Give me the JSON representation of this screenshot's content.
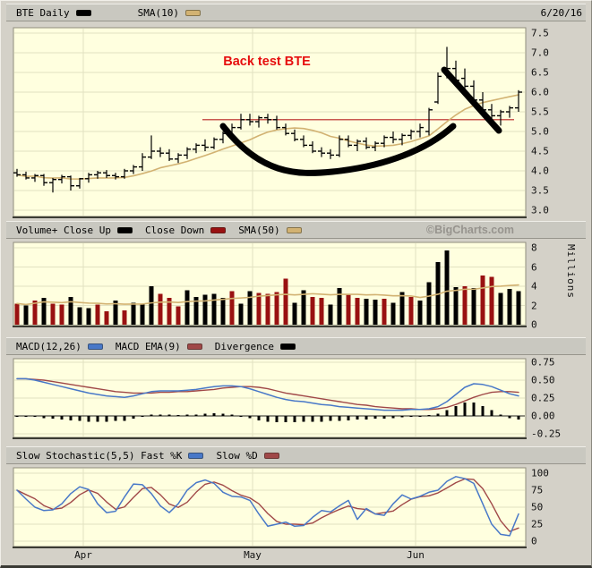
{
  "page": {
    "date": "6/20/16",
    "watermark": "©BigCharts.com"
  },
  "x_axis": {
    "months": [
      "Apr",
      "May",
      "Jun"
    ]
  },
  "panels": {
    "price": {
      "legend": [
        {
          "label": "BTE Daily",
          "color": "#000000"
        },
        {
          "label": "SMA(10)",
          "color": "#d2b272"
        }
      ],
      "y_ticks": [
        "7.5",
        "7.0",
        "6.5",
        "6.0",
        "5.5",
        "5.0",
        "4.5",
        "4.0",
        "3.5",
        "3.0"
      ]
    },
    "volume": {
      "legend": [
        {
          "label": "Volume+ Close Up",
          "color": "#000000"
        },
        {
          "label": "Close Down",
          "color": "#991111"
        },
        {
          "label": "SMA(50)",
          "color": "#d2b272"
        }
      ],
      "y_ticks": [
        "8",
        "6",
        "4",
        "2",
        "0"
      ],
      "y_axis_label": "Millions"
    },
    "macd": {
      "legend": [
        {
          "label": "MACD(12,26)",
          "color": "#4878c8"
        },
        {
          "label": "MACD EMA(9)",
          "color": "#a04848"
        },
        {
          "label": "Divergence",
          "color": "#000000"
        }
      ],
      "y_ticks": [
        "0.75",
        "0.50",
        "0.25",
        "0.00",
        "-0.25"
      ]
    },
    "stochastic": {
      "legend": [
        {
          "label": "Slow Stochastic(5,5) Fast %K",
          "color": "#4878c8"
        },
        {
          "label": "Slow %D",
          "color": "#a04848"
        }
      ],
      "y_ticks": [
        "100",
        "75",
        "50",
        "25",
        "0"
      ]
    }
  },
  "theme": {
    "plot_bg": "#ffffdf",
    "grid": "#e2e2c2",
    "plot_border": "#8f8d7e",
    "bar_black": "#000000",
    "bar_red": "#991111",
    "sma_tan": "#d2b272",
    "macd_blue": "#4878c8",
    "indicator_red": "#a04848",
    "hline_red": "#b82222",
    "annotation_red": "#e60e0e"
  },
  "chart_data": {
    "price": {
      "type": "ohlc",
      "symbol": "BTE",
      "interval": "Daily",
      "ylim": [
        3.0,
        7.5
      ],
      "sma_period": 10,
      "ohlc": [
        [
          3.95,
          4.05,
          3.85,
          3.9
        ],
        [
          3.9,
          3.98,
          3.78,
          3.82
        ],
        [
          3.82,
          3.92,
          3.72,
          3.88
        ],
        [
          3.88,
          3.92,
          3.62,
          3.7
        ],
        [
          3.7,
          3.82,
          3.45,
          3.78
        ],
        [
          3.78,
          3.9,
          3.68,
          3.85
        ],
        [
          3.85,
          3.88,
          3.5,
          3.62
        ],
        [
          3.62,
          3.82,
          3.55,
          3.8
        ],
        [
          3.8,
          3.95,
          3.7,
          3.9
        ],
        [
          3.9,
          4.0,
          3.8,
          3.95
        ],
        [
          3.95,
          4.02,
          3.82,
          3.88
        ],
        [
          3.88,
          3.95,
          3.78,
          3.85
        ],
        [
          3.85,
          4.05,
          3.8,
          4.0
        ],
        [
          4.0,
          4.15,
          3.92,
          4.1
        ],
        [
          4.1,
          4.45,
          4.0,
          4.35
        ],
        [
          4.35,
          4.9,
          4.3,
          4.5
        ],
        [
          4.5,
          4.6,
          4.35,
          4.45
        ],
        [
          4.45,
          4.55,
          4.25,
          4.3
        ],
        [
          4.3,
          4.45,
          4.2,
          4.4
        ],
        [
          4.4,
          4.6,
          4.3,
          4.55
        ],
        [
          4.55,
          4.7,
          4.45,
          4.65
        ],
        [
          4.65,
          4.8,
          4.5,
          4.6
        ],
        [
          4.6,
          4.85,
          4.55,
          4.8
        ],
        [
          4.8,
          5.0,
          4.7,
          4.95
        ],
        [
          4.95,
          5.2,
          4.85,
          5.1
        ],
        [
          5.1,
          5.45,
          5.05,
          5.3
        ],
        [
          5.3,
          5.45,
          5.15,
          5.25
        ],
        [
          5.25,
          5.4,
          5.1,
          5.35
        ],
        [
          5.35,
          5.45,
          5.2,
          5.3
        ],
        [
          5.3,
          5.4,
          5.05,
          5.1
        ],
        [
          5.1,
          5.2,
          4.9,
          4.95
        ],
        [
          4.95,
          5.05,
          4.75,
          4.8
        ],
        [
          4.8,
          4.9,
          4.6,
          4.65
        ],
        [
          4.65,
          4.75,
          4.45,
          4.5
        ],
        [
          4.5,
          4.6,
          4.35,
          4.45
        ],
        [
          4.45,
          4.55,
          4.3,
          4.4
        ],
        [
          4.4,
          4.9,
          4.35,
          4.8
        ],
        [
          4.8,
          4.9,
          4.6,
          4.65
        ],
        [
          4.65,
          4.8,
          4.5,
          4.75
        ],
        [
          4.75,
          4.85,
          4.55,
          4.6
        ],
        [
          4.6,
          4.75,
          4.5,
          4.7
        ],
        [
          4.7,
          4.9,
          4.6,
          4.85
        ],
        [
          4.85,
          5.0,
          4.7,
          4.8
        ],
        [
          4.8,
          4.95,
          4.65,
          4.9
        ],
        [
          4.9,
          5.05,
          4.8,
          5.0
        ],
        [
          5.0,
          5.2,
          4.85,
          5.1
        ],
        [
          5.0,
          5.6,
          4.9,
          5.55
        ],
        [
          5.75,
          6.5,
          5.7,
          6.4
        ],
        [
          6.5,
          7.15,
          6.35,
          6.6
        ],
        [
          6.6,
          6.8,
          6.15,
          6.3
        ],
        [
          6.35,
          6.6,
          6.0,
          6.15
        ],
        [
          6.15,
          6.3,
          5.7,
          5.8
        ],
        [
          5.8,
          6.0,
          5.45,
          5.55
        ],
        [
          5.55,
          5.7,
          5.3,
          5.4
        ],
        [
          5.4,
          5.55,
          5.15,
          5.5
        ],
        [
          5.5,
          5.65,
          5.35,
          5.6
        ],
        [
          5.6,
          6.05,
          5.5,
          6.0
        ]
      ],
      "annotations": {
        "label": "Back test BTE",
        "resistance_level": 5.3,
        "cup_shape": true,
        "downtrend_line": true
      }
    },
    "volume": {
      "type": "bar",
      "unit": "Millions",
      "ylim": [
        0,
        8
      ],
      "sma_period": 50,
      "values": [
        2.2,
        2.0,
        2.5,
        2.8,
        2.2,
        2.1,
        2.9,
        1.8,
        1.7,
        2.1,
        1.4,
        2.5,
        1.5,
        2.3,
        2.2,
        4.0,
        3.2,
        2.8,
        1.9,
        3.6,
        2.9,
        3.1,
        3.2,
        2.8,
        3.5,
        2.2,
        3.5,
        3.3,
        3.2,
        3.4,
        4.8,
        2.3,
        3.6,
        2.9,
        2.8,
        2.1,
        3.8,
        3.1,
        2.8,
        2.7,
        2.6,
        2.7,
        2.3,
        3.4,
        2.9,
        2.5,
        4.4,
        6.5,
        7.7,
        3.9,
        4.0,
        3.8,
        5.1,
        5.0,
        3.3,
        3.7,
        3.5
      ],
      "direction": [
        "d",
        "u",
        "d",
        "u",
        "d",
        "d",
        "u",
        "u",
        "u",
        "d",
        "d",
        "u",
        "d",
        "u",
        "u",
        "u",
        "d",
        "d",
        "d",
        "u",
        "u",
        "u",
        "u",
        "u",
        "d",
        "u",
        "u",
        "d",
        "d",
        "d",
        "d",
        "u",
        "u",
        "d",
        "d",
        "u",
        "u",
        "d",
        "d",
        "u",
        "u",
        "d",
        "u",
        "u",
        "d",
        "u",
        "u",
        "u",
        "u",
        "u",
        "d",
        "u",
        "d",
        "d",
        "u",
        "u",
        "u"
      ]
    },
    "macd": {
      "type": "line+histogram",
      "ylim": [
        -0.25,
        0.75
      ],
      "macd": [
        0.52,
        0.52,
        0.5,
        0.47,
        0.44,
        0.41,
        0.38,
        0.35,
        0.32,
        0.3,
        0.28,
        0.27,
        0.26,
        0.28,
        0.31,
        0.34,
        0.35,
        0.35,
        0.35,
        0.36,
        0.37,
        0.39,
        0.41,
        0.42,
        0.42,
        0.41,
        0.38,
        0.34,
        0.3,
        0.26,
        0.23,
        0.21,
        0.2,
        0.18,
        0.16,
        0.15,
        0.13,
        0.12,
        0.11,
        0.1,
        0.09,
        0.08,
        0.08,
        0.08,
        0.09,
        0.09,
        0.1,
        0.13,
        0.2,
        0.3,
        0.4,
        0.45,
        0.44,
        0.41,
        0.36,
        0.31,
        0.28
      ],
      "ema": [
        0.52,
        0.52,
        0.51,
        0.5,
        0.48,
        0.46,
        0.44,
        0.42,
        0.4,
        0.38,
        0.36,
        0.34,
        0.33,
        0.32,
        0.32,
        0.32,
        0.33,
        0.33,
        0.34,
        0.34,
        0.35,
        0.36,
        0.37,
        0.39,
        0.4,
        0.41,
        0.41,
        0.4,
        0.38,
        0.35,
        0.32,
        0.3,
        0.28,
        0.26,
        0.24,
        0.22,
        0.2,
        0.18,
        0.16,
        0.15,
        0.13,
        0.12,
        0.11,
        0.1,
        0.1,
        0.09,
        0.09,
        0.1,
        0.12,
        0.16,
        0.21,
        0.26,
        0.3,
        0.33,
        0.34,
        0.34,
        0.33
      ]
    },
    "stochastic": {
      "type": "line",
      "ylim": [
        0,
        100
      ],
      "d_period": 3,
      "k": [
        75,
        62,
        50,
        45,
        46,
        55,
        70,
        80,
        76,
        55,
        42,
        44,
        65,
        84,
        83,
        70,
        52,
        42,
        55,
        75,
        86,
        90,
        85,
        72,
        66,
        65,
        60,
        40,
        22,
        25,
        28,
        22,
        23,
        35,
        45,
        43,
        52,
        60,
        32,
        48,
        40,
        38,
        55,
        68,
        62,
        66,
        72,
        75,
        88,
        95,
        92,
        85,
        55,
        25,
        10,
        8,
        40
      ]
    }
  }
}
